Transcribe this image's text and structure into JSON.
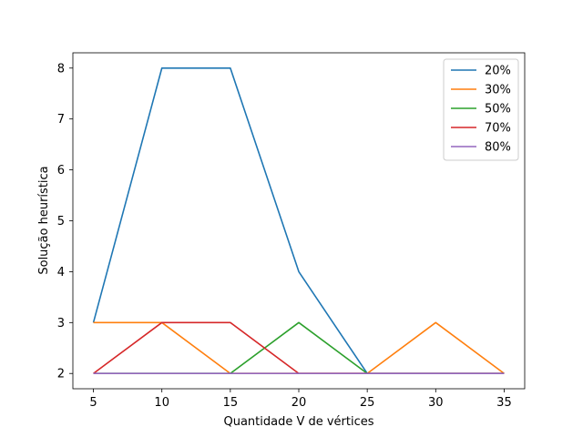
{
  "chart_data": {
    "type": "line",
    "xlabel": "Quantidade V de vértices",
    "ylabel": "Solução heurística",
    "xlim": [
      3.5,
      36.5
    ],
    "ylim": [
      1.7,
      8.3
    ],
    "xticks": [
      5,
      10,
      15,
      20,
      25,
      30,
      35
    ],
    "yticks": [
      2,
      3,
      4,
      5,
      6,
      7,
      8
    ],
    "grid": false,
    "legend_position": "top-right",
    "series": [
      {
        "name": "20%",
        "color": "#1f77b4",
        "x": [
          5,
          10,
          15,
          20,
          25
        ],
        "y": [
          3,
          8,
          8,
          4,
          2
        ]
      },
      {
        "name": "30%",
        "color": "#ff7f0e",
        "x": [
          5,
          10,
          15,
          20,
          25,
          30,
          35
        ],
        "y": [
          3,
          3,
          2,
          2,
          2,
          3,
          2
        ]
      },
      {
        "name": "50%",
        "color": "#2ca02c",
        "x": [
          5,
          10,
          15,
          20,
          25,
          30,
          35
        ],
        "y": [
          2,
          2,
          2,
          3,
          2,
          2,
          2
        ]
      },
      {
        "name": "70%",
        "color": "#d62728",
        "x": [
          5,
          10,
          15,
          20,
          25,
          30,
          35
        ],
        "y": [
          2,
          3,
          3,
          2,
          2,
          2,
          2
        ]
      },
      {
        "name": "80%",
        "color": "#9467bd",
        "x": [
          5,
          10,
          15,
          20,
          25,
          30,
          35
        ],
        "y": [
          2,
          2,
          2,
          2,
          2,
          2,
          2
        ]
      }
    ]
  }
}
